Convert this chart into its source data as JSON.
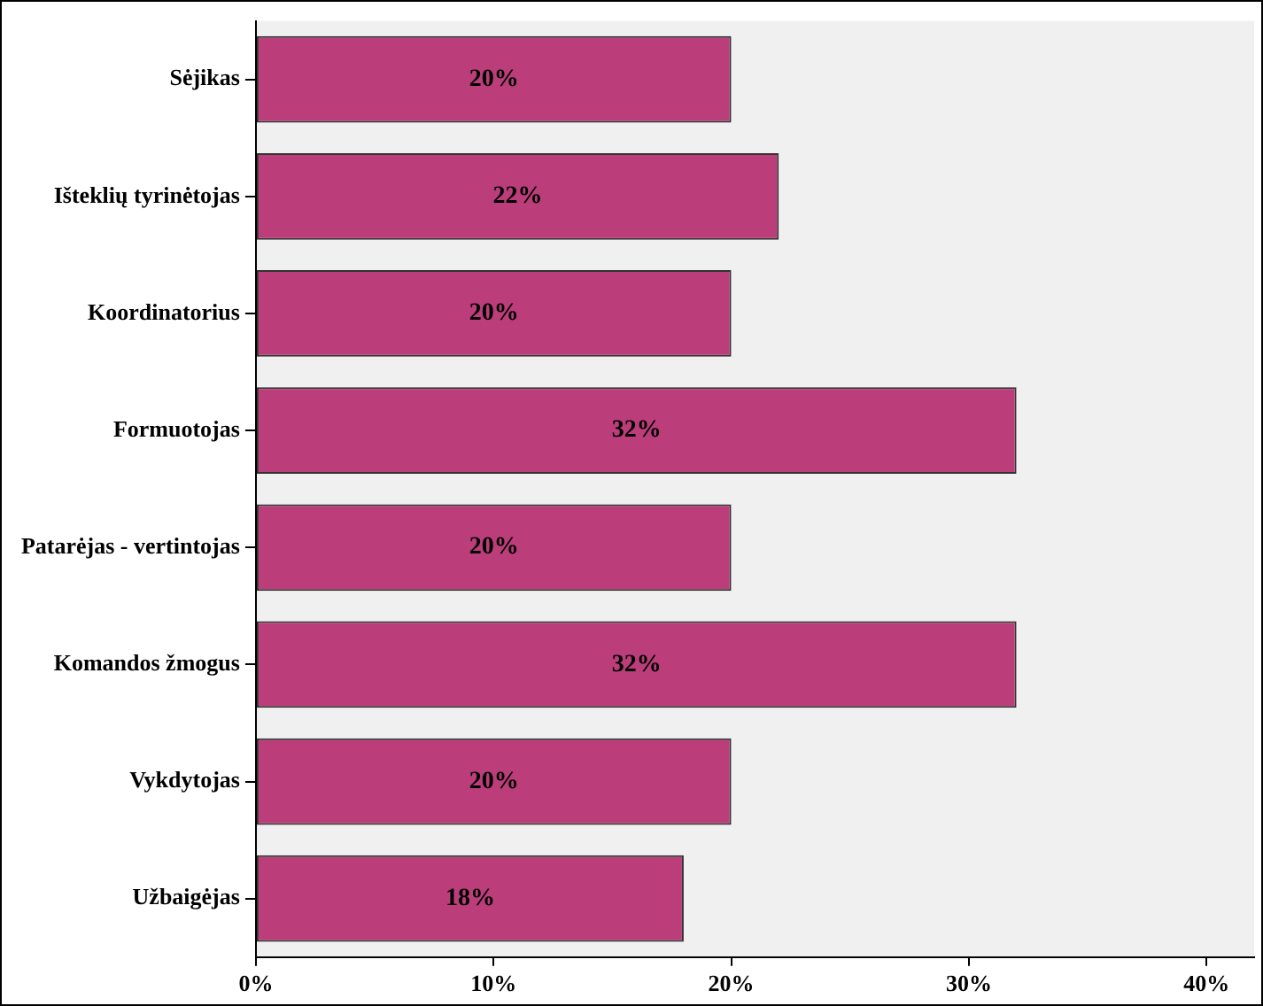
{
  "chart_data": {
    "type": "bar",
    "orientation": "horizontal",
    "categories": [
      "Sėjikas",
      "Išteklių tyrinėtojas",
      "Koordinatorius",
      "Formuotojas",
      "Patarėjas - vertintojas",
      "Komandos žmogus",
      "Vykdytojas",
      "Užbaigėjas"
    ],
    "values": [
      20,
      22,
      20,
      32,
      20,
      32,
      20,
      18
    ],
    "value_labels": [
      "20%",
      "22%",
      "20%",
      "32%",
      "20%",
      "32%",
      "20%",
      "18%"
    ],
    "color": "#bb3e7a",
    "xlim": [
      0,
      42
    ],
    "xticks": [
      {
        "value": 0,
        "label": "0%"
      },
      {
        "value": 10,
        "label": "10%"
      },
      {
        "value": 20,
        "label": "20%"
      },
      {
        "value": 30,
        "label": "30%"
      },
      {
        "value": 40,
        "label": "40%"
      }
    ],
    "legend": false
  }
}
